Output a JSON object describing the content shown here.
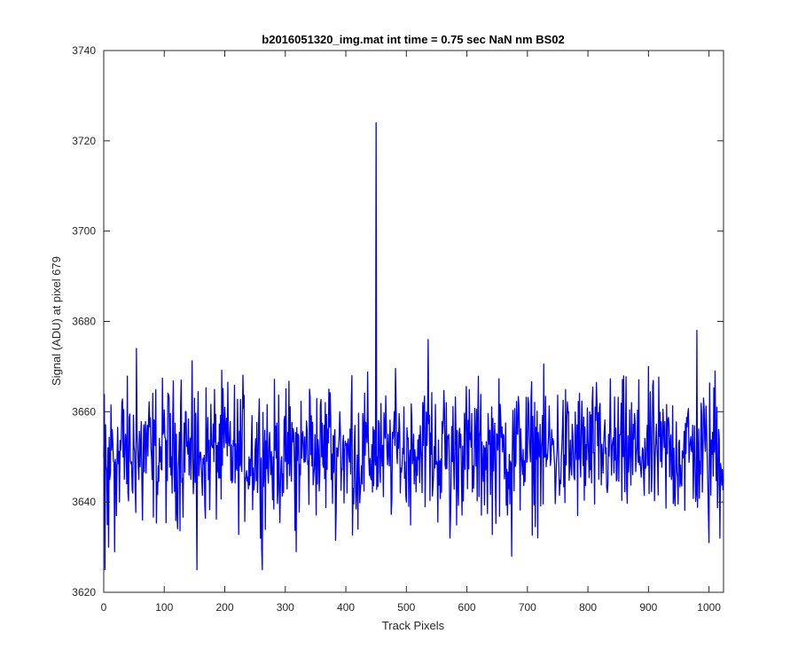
{
  "chart_data": {
    "type": "line",
    "title": "b2016051320_img.mat int time = 0.75 sec  NaN nm BS02",
    "xlabel": "Track Pixels",
    "ylabel": "Signal (ADU) at pixel 679",
    "xlim": [
      0,
      1024
    ],
    "ylim": [
      3620,
      3740
    ],
    "xticks": [
      0,
      100,
      200,
      300,
      400,
      500,
      600,
      700,
      800,
      900,
      1000
    ],
    "yticks": [
      3620,
      3640,
      3660,
      3680,
      3700,
      3720,
      3740
    ],
    "grid": false,
    "line_color": "#0000ff",
    "series": [
      {
        "noise_summary": {
          "mean": 3651,
          "typical_min": 3634,
          "typical_max": 3668,
          "length": 1024
        },
        "points": [
          [
            0,
            3650
          ],
          [
            2,
            3625
          ],
          [
            4,
            3648
          ],
          [
            6,
            3635
          ],
          [
            8,
            3630
          ],
          [
            10,
            3645
          ],
          [
            14,
            3656
          ],
          [
            18,
            3629
          ],
          [
            20,
            3648
          ],
          [
            26,
            3640
          ],
          [
            30,
            3662
          ],
          [
            36,
            3655
          ],
          [
            40,
            3642
          ],
          [
            48,
            3642
          ],
          [
            54,
            3674
          ],
          [
            58,
            3645
          ],
          [
            64,
            3636
          ],
          [
            72,
            3657
          ],
          [
            80,
            3645
          ],
          [
            90,
            3648
          ],
          [
            98,
            3655
          ],
          [
            112,
            3650
          ],
          [
            120,
            3655
          ],
          [
            128,
            3667
          ],
          [
            136,
            3660
          ],
          [
            144,
            3645
          ],
          [
            150,
            3663
          ],
          [
            154,
            3625
          ],
          [
            160,
            3651
          ],
          [
            180,
            3652
          ],
          [
            200,
            3661
          ],
          [
            220,
            3647
          ],
          [
            240,
            3650
          ],
          [
            262,
            3625
          ],
          [
            280,
            3650
          ],
          [
            300,
            3649
          ],
          [
            318,
            3629
          ],
          [
            330,
            3652
          ],
          [
            340,
            3665
          ],
          [
            350,
            3648
          ],
          [
            360,
            3650
          ],
          [
            372,
            3665
          ],
          [
            382,
            3656
          ],
          [
            390,
            3660
          ],
          [
            402,
            3642
          ],
          [
            410,
            3668
          ],
          [
            420,
            3634
          ],
          [
            448,
            3650
          ],
          [
            450,
            3724
          ],
          [
            452,
            3650
          ],
          [
            460,
            3648
          ],
          [
            470,
            3655
          ],
          [
            480,
            3660
          ],
          [
            490,
            3642
          ],
          [
            500,
            3640
          ],
          [
            512,
            3655
          ],
          [
            524,
            3652
          ],
          [
            536,
            3676
          ],
          [
            550,
            3649
          ],
          [
            566,
            3662
          ],
          [
            572,
            3632
          ],
          [
            590,
            3655
          ],
          [
            610,
            3648
          ],
          [
            630,
            3652
          ],
          [
            650,
            3655
          ],
          [
            660,
            3655
          ],
          [
            674,
            3628
          ],
          [
            690,
            3651
          ],
          [
            720,
            3650
          ],
          [
            740,
            3656
          ],
          [
            770,
            3648
          ],
          [
            800,
            3654
          ],
          [
            830,
            3652
          ],
          [
            860,
            3650
          ],
          [
            890,
            3652
          ],
          [
            920,
            3649
          ],
          [
            950,
            3653
          ],
          [
            980,
            3678
          ],
          [
            1000,
            3631
          ],
          [
            1010,
            3669
          ],
          [
            1018,
            3632
          ],
          [
            1024,
            3645
          ]
        ]
      }
    ]
  }
}
